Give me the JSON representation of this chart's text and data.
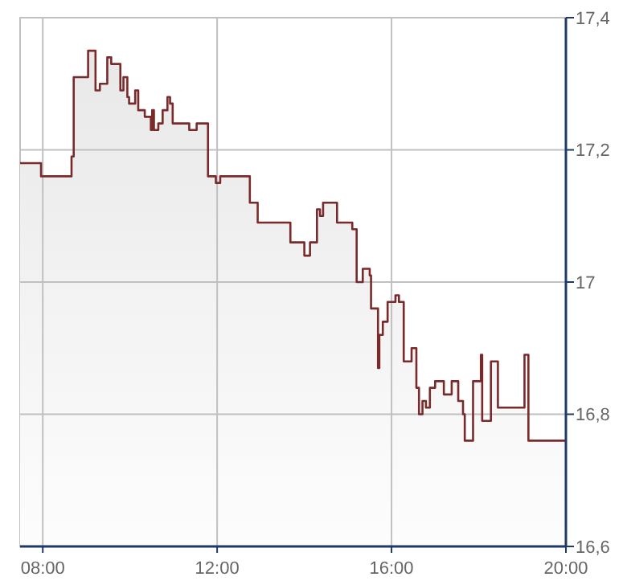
{
  "chart_data": {
    "type": "area",
    "x": [
      7.48,
      7.96,
      7.96,
      8.66,
      8.66,
      8.71,
      8.71,
      9.04,
      9.04,
      9.21,
      9.21,
      9.31,
      9.31,
      9.48,
      9.48,
      9.57,
      9.57,
      9.78,
      9.78,
      9.85,
      9.85,
      9.94,
      9.94,
      9.98,
      9.98,
      10.12,
      10.12,
      10.19,
      10.19,
      10.34,
      10.34,
      10.48,
      10.48,
      10.51,
      10.51,
      10.55,
      10.55,
      10.65,
      10.65,
      10.75,
      10.75,
      10.86,
      10.86,
      10.92,
      10.92,
      10.98,
      10.98,
      11.36,
      11.36,
      11.53,
      11.53,
      11.79,
      11.79,
      11.97,
      11.97,
      12.07,
      12.07,
      12.75,
      12.75,
      12.93,
      12.93,
      13.68,
      13.68,
      14.0,
      14.0,
      14.13,
      14.13,
      14.29,
      14.29,
      14.36,
      14.36,
      14.43,
      14.43,
      14.75,
      14.75,
      15.1,
      15.1,
      15.2,
      15.2,
      15.34,
      15.34,
      15.5,
      15.5,
      15.53,
      15.53,
      15.69,
      15.69,
      15.72,
      15.72,
      15.8,
      15.8,
      15.91,
      15.91,
      16.09,
      16.09,
      16.17,
      16.17,
      16.28,
      16.28,
      16.46,
      16.46,
      16.57,
      16.57,
      16.63,
      16.63,
      16.71,
      16.71,
      16.79,
      16.79,
      16.88,
      16.88,
      17.0,
      17.0,
      17.2,
      17.2,
      17.38,
      17.38,
      17.53,
      17.53,
      17.64,
      17.64,
      17.68,
      17.68,
      17.87,
      17.87,
      18.05,
      18.05,
      18.08,
      18.08,
      18.28,
      18.28,
      18.44,
      18.44,
      19.05,
      19.05,
      19.14,
      19.14,
      20.0
    ],
    "series": [
      {
        "color": "#7a2a2a",
        "values": [
          17.18,
          17.18,
          17.16,
          17.16,
          17.19,
          17.19,
          17.31,
          17.31,
          17.35,
          17.35,
          17.29,
          17.29,
          17.3,
          17.3,
          17.34,
          17.34,
          17.33,
          17.33,
          17.29,
          17.29,
          17.31,
          17.31,
          17.28,
          17.28,
          17.27,
          17.27,
          17.29,
          17.29,
          17.26,
          17.26,
          17.25,
          17.25,
          17.23,
          17.23,
          17.26,
          17.26,
          17.23,
          17.23,
          17.24,
          17.24,
          17.26,
          17.26,
          17.28,
          17.28,
          17.27,
          17.27,
          17.24,
          17.24,
          17.23,
          17.23,
          17.24,
          17.24,
          17.16,
          17.16,
          17.15,
          17.15,
          17.16,
          17.16,
          17.12,
          17.12,
          17.09,
          17.09,
          17.06,
          17.06,
          17.04,
          17.04,
          17.06,
          17.06,
          17.11,
          17.11,
          17.1,
          17.1,
          17.12,
          17.12,
          17.09,
          17.09,
          17.08,
          17.08,
          17.0,
          17.0,
          17.02,
          17.02,
          17.01,
          17.01,
          16.96,
          16.96,
          16.87,
          16.87,
          16.92,
          16.92,
          16.94,
          16.94,
          16.97,
          16.97,
          16.98,
          16.98,
          16.97,
          16.97,
          16.88,
          16.88,
          16.9,
          16.9,
          16.84,
          16.84,
          16.8,
          16.8,
          16.82,
          16.82,
          16.81,
          16.81,
          16.84,
          16.84,
          16.85,
          16.85,
          16.83,
          16.83,
          16.85,
          16.85,
          16.82,
          16.82,
          16.8,
          16.8,
          16.76,
          16.76,
          16.85,
          16.85,
          16.89,
          16.89,
          16.79,
          16.79,
          16.88,
          16.88,
          16.81,
          16.81,
          16.89,
          16.89,
          16.76,
          16.76
        ]
      }
    ],
    "xlim": [
      7.48,
      20
    ],
    "ylim": [
      16.6,
      17.4
    ],
    "xticks": [
      {
        "value": 8,
        "label": "08:00"
      },
      {
        "value": 12,
        "label": "12:00"
      },
      {
        "value": 16,
        "label": "16:00"
      },
      {
        "value": 20,
        "label": "20:00"
      }
    ],
    "yticks": [
      {
        "value": 16.6,
        "label": "16,6"
      },
      {
        "value": 16.8,
        "label": "16,8"
      },
      {
        "value": 17,
        "label": "17"
      },
      {
        "value": 17.2,
        "label": "17,2"
      },
      {
        "value": 17.4,
        "label": "17,4"
      }
    ],
    "grid": true,
    "marker": "none",
    "line_style": "solid"
  }
}
